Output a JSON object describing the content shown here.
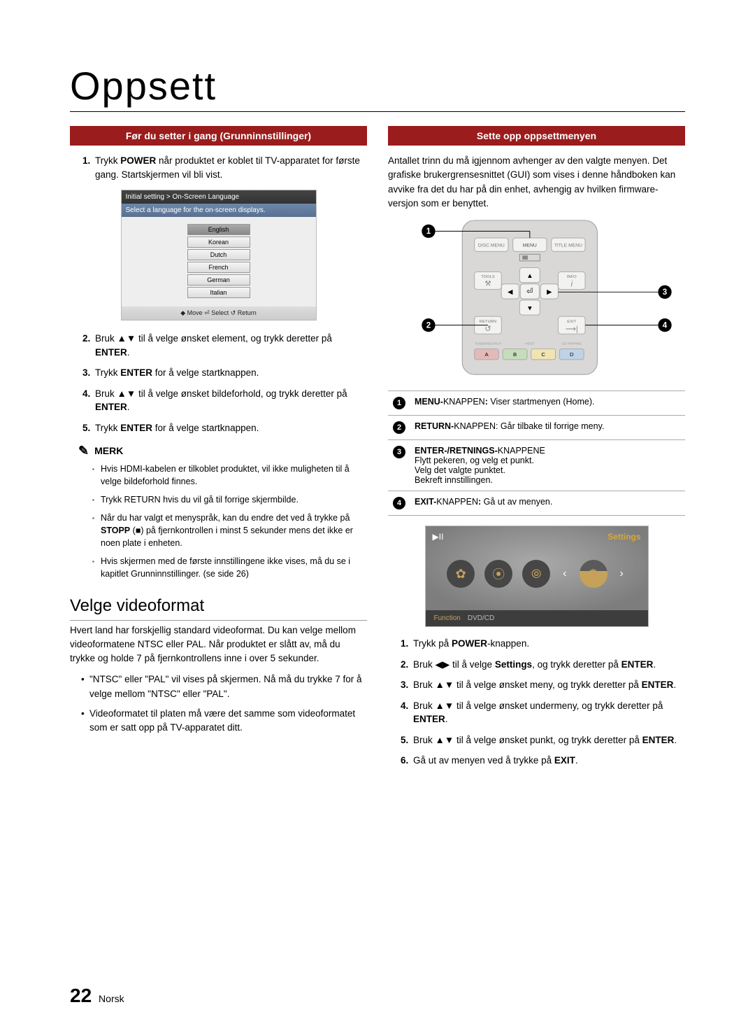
{
  "page_title": "Oppsett",
  "footer": {
    "page_number": "22",
    "language": "Norsk"
  },
  "left": {
    "header": "Før du setter i gang (Grunninnstillinger)",
    "steps_a": [
      "Trykk |POWER| når produktet er koblet til TV-apparatet for første gang. Startskjermen vil bli vist."
    ],
    "lang_dialog": {
      "title": "Initial setting > On-Screen Language",
      "subtitle": "Select a language for the on-screen displays.",
      "options": [
        "English",
        "Korean",
        "Dutch",
        "French",
        "German",
        "Italian"
      ],
      "footer_items": [
        "◆ Move",
        "⏎ Select",
        "↺ Return"
      ]
    },
    "steps_b": [
      "Bruk ▲▼ til å velge ønsket element, og trykk deretter på |ENTER|.",
      "Trykk |ENTER| for å velge startknappen.",
      "Bruk ▲▼ til å velge ønsket bildeforhold, og trykk deretter på |ENTER|.",
      "Trykk |ENTER| for å velge startknappen."
    ],
    "note_title": "MERK",
    "notes": [
      "Hvis HDMI-kabelen er tilkoblet produktet, vil ikke muligheten til å velge bildeforhold finnes.",
      "Trykk RETURN hvis du vil gå til forrige skjermbilde.",
      "Når du har valgt et menyspråk, kan du endre det ved å trykke på |STOPP| (■) på fjernkontrollen i minst 5 sekunder mens det ikke er noen plate i enheten.",
      "Hvis skjermen med de første innstillingene ikke vises, må du se i kapitlet Grunninnstillinger. (se side 26)"
    ],
    "sub_h2": "Velge videoformat",
    "vf_para": "Hvert land har forskjellig standard videoformat. Du kan velge mellom videoformatene NTSC eller PAL. Når produktet er slått av, må du trykke og holde 7 på fjernkontrollens inne i over 5 sekunder.",
    "vf_bullets": [
      "\"NTSC\" eller \"PAL\" vil vises på skjermen. Nå må du trykke 7 for å velge mellom \"NTSC\" eller \"PAL\".",
      "Videoformatet til platen må være det samme som videoformatet som er satt opp på TV-apparatet ditt."
    ]
  },
  "right": {
    "header": "Sette opp oppsettmenyen",
    "intro": "Antallet trinn du må igjennom avhenger av den valgte menyen. Det grafiske brukergrensesnittet (GUI) som vises i denne håndboken kan avvike fra det du har på din enhet, avhengig av hvilken firmware-versjon som er benyttet.",
    "remote_labels": {
      "disc_menu": "DISC MENU",
      "menu": "MENU",
      "title_menu": "TITLE MENU",
      "tools": "TOOLS",
      "info": "INFO",
      "return": "RETURN",
      "exit": "EXIT",
      "title_search": "TUNER/SEARCH",
      "host": "HOST",
      "cd_ripping": "CD RIPPING",
      "a": "A",
      "b": "B",
      "c": "C",
      "d": "D"
    },
    "callouts": [
      "|MENU-|KNAPPEN|:| Viser startmenyen (Home).",
      "|RETURN-|KNAPPEN: Går tilbake til forrige meny.",
      "|ENTER-/RETNINGS-|KNAPPENE\nFlytt pekeren, og velg et punkt.\nVelg det valgte punktet.\nBekreft innstillingen.",
      "|EXIT-|KNAPPEN|:| Gå ut av menyen."
    ],
    "settings_screen": {
      "play_pause": "▶II",
      "label": "Settings",
      "func": "Function",
      "source": "DVD/CD"
    },
    "steps": [
      "Trykk på |POWER|-knappen.",
      "Bruk ◀▶ til å velge |Settings|, og trykk deretter på |ENTER|.",
      "Bruk ▲▼ til å velge ønsket meny, og trykk deretter på |ENTER|.",
      "Bruk ▲▼ til å velge ønsket undermeny, og trykk deretter på |ENTER|.",
      "Bruk ▲▼ til å velge ønsket punkt, og trykk deretter på |ENTER|.",
      "Gå ut av menyen ved å trykke på |EXIT|."
    ]
  }
}
